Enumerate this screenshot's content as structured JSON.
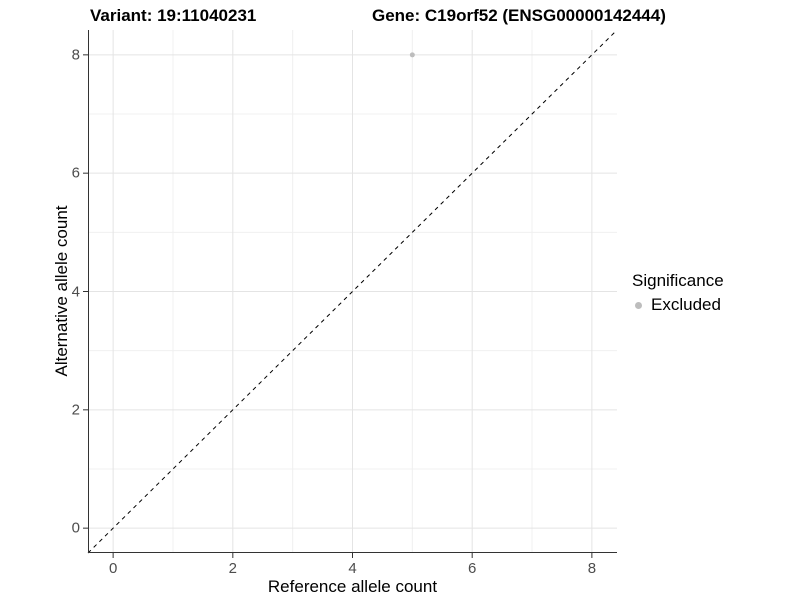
{
  "titles": {
    "variant": "Variant: 19:11040231",
    "gene": "Gene: C19orf52 (ENSG00000142444)"
  },
  "legend": {
    "title": "Significance",
    "items": [
      {
        "label": "Excluded",
        "color": "#bdbdbd"
      }
    ]
  },
  "colors": {
    "major_grid": "#e4e4e4",
    "minor_grid": "#f0f0f0",
    "axis": "#333333",
    "tick_label": "#4d4d4d",
    "reference_line": "#000000"
  },
  "chart_data": {
    "type": "scatter",
    "title": "Variant: 19:11040231 | Gene: C19orf52 (ENSG00000142444)",
    "xlabel": "Reference allele count",
    "ylabel": "Alternative allele count",
    "xlim": [
      -0.42,
      8.42
    ],
    "ylim": [
      -0.42,
      8.42
    ],
    "x_ticks": [
      0,
      2,
      4,
      6,
      8
    ],
    "y_ticks": [
      0,
      2,
      4,
      6,
      8
    ],
    "x_minor_ticks": [
      1,
      3,
      5,
      7
    ],
    "y_minor_ticks": [
      1,
      3,
      5,
      7
    ],
    "grid": "major+minor",
    "legend_position": "right",
    "series": [
      {
        "name": "Excluded",
        "color": "#bdbdbd",
        "points": [
          {
            "x": 5,
            "y": 8
          }
        ]
      }
    ],
    "reference_line": {
      "slope": 1,
      "intercept": 0,
      "linetype": "dashed",
      "color": "#000000"
    }
  }
}
